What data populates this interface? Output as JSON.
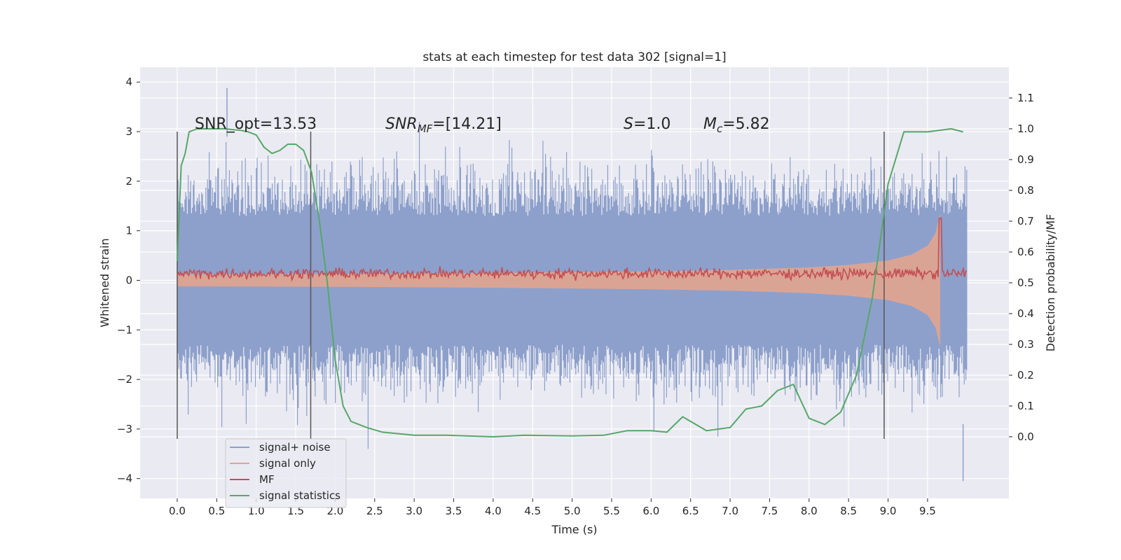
{
  "chart_data": {
    "type": "line",
    "title": "stats at each timestep for test data 302 [signal=1]",
    "xlabel": "Time (s)",
    "ylabel": "Whitened strain",
    "y2label": "Detection probability/MF",
    "xlim": [
      -0.47,
      10.53
    ],
    "ylim": [
      -4.4,
      4.3
    ],
    "y2lim": [
      -0.2,
      1.2
    ],
    "x_ticks": [
      "0.0",
      "0.5",
      "1.0",
      "1.5",
      "2.0",
      "2.5",
      "3.0",
      "3.5",
      "4.0",
      "4.5",
      "5.0",
      "5.5",
      "6.0",
      "6.5",
      "7.0",
      "7.5",
      "8.0",
      "8.5",
      "9.0",
      "9.5"
    ],
    "y_ticks": [
      "4",
      "3",
      "2",
      "1",
      "0",
      "−1",
      "−2",
      "−3",
      "−4"
    ],
    "y2_ticks": [
      "1.1",
      "1.0",
      "0.9",
      "0.8",
      "0.7",
      "0.6",
      "0.5",
      "0.4",
      "0.3",
      "0.2",
      "0.1",
      "0.0"
    ],
    "grid": true,
    "legend_position": "lower-left",
    "annotations": {
      "snr_opt": "SNR_opt=13.53",
      "snr_mf_label": "SNR",
      "snr_mf_sub": "MF",
      "snr_mf_value": "=[14.21]",
      "s_label": "S",
      "s_value": "=1.0",
      "mc_label": "M",
      "mc_sub": "c",
      "mc_value": "=5.82"
    },
    "vertical_markers_s": [
      0.0,
      1.69,
      8.95
    ],
    "series": [
      {
        "name": "signal+ noise",
        "color": "#8da0cb",
        "description_values": {
          "x_range": [
            0.0,
            10.0
          ],
          "typical_envelope": [
            -2.3,
            2.4
          ],
          "extremes": [
            -4.05,
            3.88
          ]
        }
      },
      {
        "name": "signal only",
        "color": "#e8a48c",
        "chirp_envelope": {
          "x": [
            0.0,
            2.0,
            4.0,
            6.0,
            7.0,
            8.0,
            8.5,
            9.0,
            9.3,
            9.5,
            9.6,
            9.66
          ],
          "amplitude": [
            0.12,
            0.13,
            0.15,
            0.18,
            0.21,
            0.26,
            0.31,
            0.4,
            0.52,
            0.7,
            0.95,
            1.35
          ]
        }
      },
      {
        "name": "MF",
        "color": "#c44e52",
        "mean_level_y2": 0.53,
        "noise_amplitude_y2": 0.012,
        "peak": {
          "x": 9.66,
          "y2": 0.71
        }
      },
      {
        "name": "signal statistics",
        "color": "#55a868",
        "x": [
          0.0,
          0.05,
          0.1,
          0.15,
          0.25,
          0.4,
          0.6,
          0.8,
          0.9,
          1.0,
          1.1,
          1.2,
          1.3,
          1.4,
          1.5,
          1.6,
          1.7,
          1.8,
          1.9,
          2.0,
          2.1,
          2.2,
          2.4,
          2.6,
          3.0,
          3.4,
          4.0,
          4.4,
          5.0,
          5.4,
          5.7,
          6.0,
          6.2,
          6.4,
          6.5,
          6.7,
          7.0,
          7.2,
          7.4,
          7.6,
          7.8,
          8.0,
          8.2,
          8.4,
          8.6,
          8.8,
          9.0,
          9.2,
          9.5,
          9.8,
          9.95
        ],
        "y": [
          0.57,
          0.88,
          0.92,
          0.99,
          1.0,
          1.0,
          1.0,
          0.995,
          0.99,
          0.98,
          0.94,
          0.92,
          0.93,
          0.95,
          0.95,
          0.93,
          0.86,
          0.7,
          0.5,
          0.25,
          0.1,
          0.05,
          0.03,
          0.015,
          0.005,
          0.005,
          0.0,
          0.005,
          0.003,
          0.005,
          0.02,
          0.02,
          0.015,
          0.065,
          0.05,
          0.02,
          0.03,
          0.09,
          0.1,
          0.15,
          0.17,
          0.06,
          0.04,
          0.08,
          0.2,
          0.45,
          0.82,
          0.99,
          0.99,
          1.0,
          0.99
        ]
      }
    ]
  }
}
